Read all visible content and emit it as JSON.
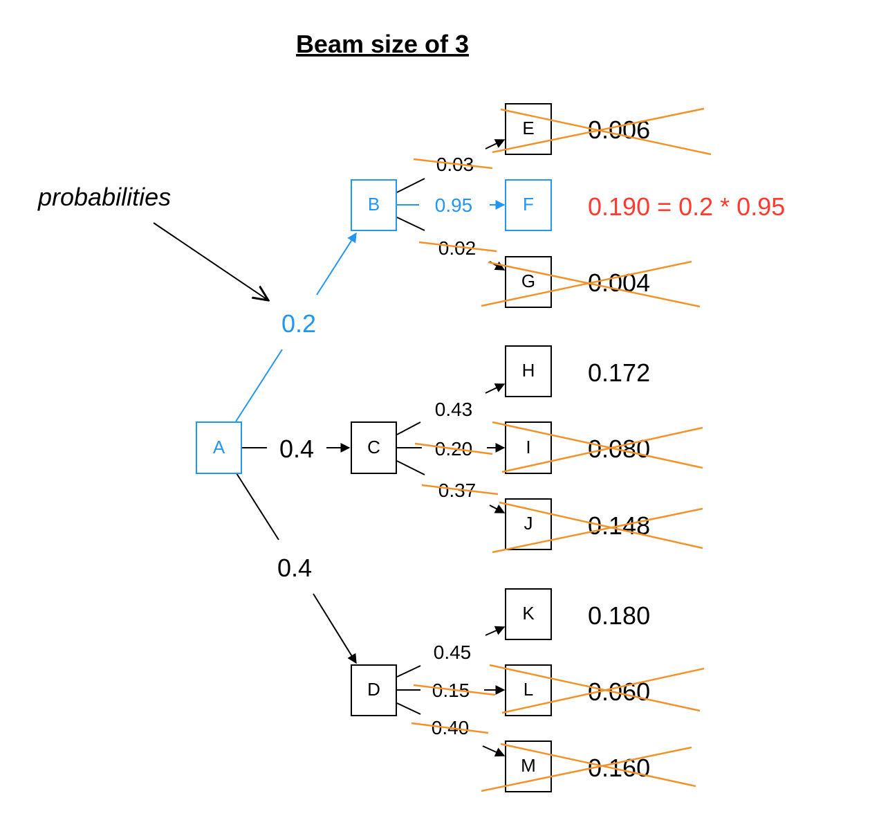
{
  "title": "Beam size of 3",
  "annotation": "probabilities",
  "colors": {
    "highlight": "#2196F3",
    "selected_score": "#FF3B30",
    "pruned_mark": "#F4922A",
    "default": "#000000"
  },
  "nodes": {
    "A": "A",
    "B": "B",
    "C": "C",
    "D": "D",
    "E": "E",
    "F": "F",
    "G": "G",
    "H": "H",
    "I": "I",
    "J": "J",
    "K": "K",
    "L": "L",
    "M": "M"
  },
  "edges": {
    "A_B": "0.2",
    "A_C": "0.4",
    "A_D": "0.4",
    "B_E": "0.03",
    "B_F": "0.95",
    "B_G": "0.02",
    "C_H": "0.43",
    "C_I": "0.20",
    "C_J": "0.37",
    "D_K": "0.45",
    "D_L": "0.15",
    "D_M": "0.40"
  },
  "scores": {
    "E": "0.006",
    "F": "0.190 = 0.2 * 0.95",
    "G": "0.004",
    "H": "0.172",
    "I": "0.080",
    "J": "0.148",
    "K": "0.180",
    "L": "0.060",
    "M": "0.160"
  }
}
